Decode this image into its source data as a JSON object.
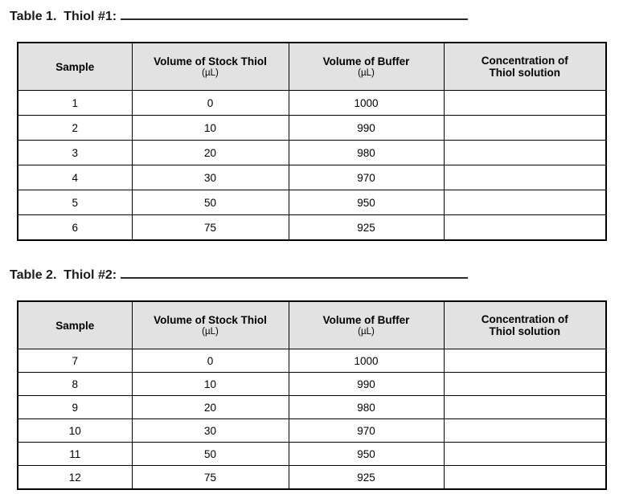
{
  "colors": {
    "header_bg": "#e2e2e2",
    "border": "#000000",
    "text": "#000000"
  },
  "table1": {
    "title": "Table 1.  Thiol #1:",
    "headers": {
      "sample": "Sample",
      "stock": "Volume of Stock Thiol",
      "stock_unit": "(µL)",
      "buffer": "Volume of Buffer",
      "buffer_unit": "(µL)",
      "conc_line1": "Concentration of",
      "conc_line2": "Thiol solution"
    },
    "rows": [
      {
        "sample": "1",
        "stock_ul": "0",
        "buffer_ul": "1000",
        "concentration": ""
      },
      {
        "sample": "2",
        "stock_ul": "10",
        "buffer_ul": "990",
        "concentration": ""
      },
      {
        "sample": "3",
        "stock_ul": "20",
        "buffer_ul": "980",
        "concentration": ""
      },
      {
        "sample": "4",
        "stock_ul": "30",
        "buffer_ul": "970",
        "concentration": ""
      },
      {
        "sample": "5",
        "stock_ul": "50",
        "buffer_ul": "950",
        "concentration": ""
      },
      {
        "sample": "6",
        "stock_ul": "75",
        "buffer_ul": "925",
        "concentration": ""
      }
    ]
  },
  "table2": {
    "title": "Table 2.  Thiol #2:",
    "headers": {
      "sample": "Sample",
      "stock": "Volume of Stock Thiol",
      "stock_unit": "(µL)",
      "buffer": "Volume of Buffer",
      "buffer_unit": "(µL)",
      "conc_line1": "Concentration of",
      "conc_line2": "Thiol solution"
    },
    "rows": [
      {
        "sample": "7",
        "stock_ul": "0",
        "buffer_ul": "1000",
        "concentration": ""
      },
      {
        "sample": "8",
        "stock_ul": "10",
        "buffer_ul": "990",
        "concentration": ""
      },
      {
        "sample": "9",
        "stock_ul": "20",
        "buffer_ul": "980",
        "concentration": ""
      },
      {
        "sample": "10",
        "stock_ul": "30",
        "buffer_ul": "970",
        "concentration": ""
      },
      {
        "sample": "11",
        "stock_ul": "50",
        "buffer_ul": "950",
        "concentration": ""
      },
      {
        "sample": "12",
        "stock_ul": "75",
        "buffer_ul": "925",
        "concentration": ""
      }
    ]
  }
}
